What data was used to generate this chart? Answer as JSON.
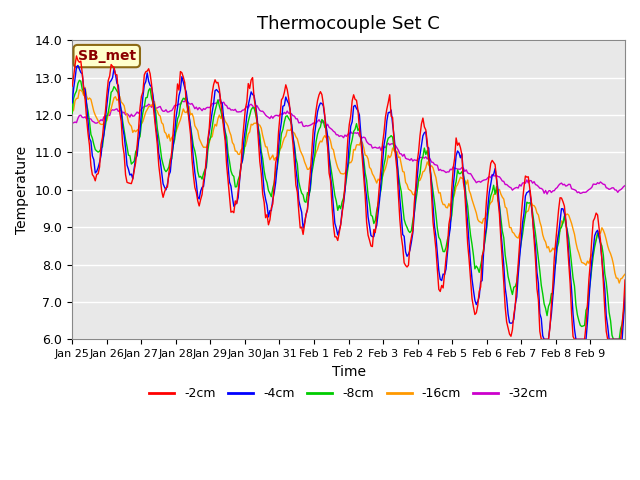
{
  "title": "Thermocouple Set C",
  "xlabel": "Time",
  "ylabel": "Temperature",
  "ylim": [
    6.0,
    14.0
  ],
  "yticks": [
    6.0,
    7.0,
    8.0,
    9.0,
    10.0,
    11.0,
    12.0,
    13.0,
    14.0
  ],
  "xtick_labels": [
    "Jan 25",
    "Jan 26",
    "Jan 27",
    "Jan 28",
    "Jan 29",
    "Jan 30",
    "Jan 31",
    "Feb 1",
    "Feb 2",
    "Feb 3",
    "Feb 4",
    "Feb 5",
    "Feb 6",
    "Feb 7",
    "Feb 8",
    "Feb 9"
  ],
  "series_labels": [
    "-2cm",
    "-4cm",
    "-8cm",
    "-16cm",
    "-32cm"
  ],
  "series_colors": [
    "#ff0000",
    "#0000ff",
    "#00cc00",
    "#ff9900",
    "#cc00cc"
  ],
  "bg_color": "#e8e8e8",
  "fig_color": "#ffffff",
  "grid_color": "#ffffff",
  "title_fontsize": 13,
  "label_fontsize": 10,
  "annotation_text": "SB_met"
}
